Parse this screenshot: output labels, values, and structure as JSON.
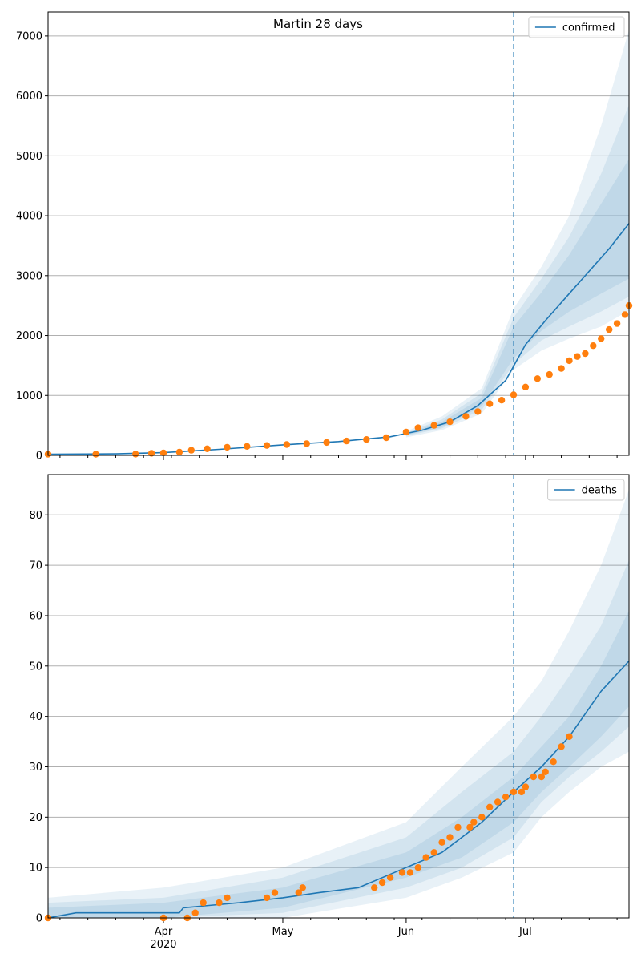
{
  "title": "Martin 28 days",
  "colors": {
    "model": "#1f77b4",
    "observed": "#ff7f0e",
    "grid": "#b0b0b0"
  },
  "chart_data": [
    {
      "type": "line",
      "name": "confirmed-panel",
      "legend": "confirmed",
      "legend_position": "top-right",
      "grid": "horizontal",
      "ylim": [
        0,
        7400
      ],
      "yticks": [
        0,
        1000,
        2000,
        3000,
        4000,
        5000,
        6000,
        7000
      ],
      "xlim": [
        "2020-03-03",
        "2020-07-27"
      ],
      "forecast_start": "2020-06-28",
      "series": [
        {
          "kind": "model-median",
          "points": [
            [
              "2020-03-03",
              20
            ],
            [
              "2020-03-20",
              25
            ],
            [
              "2020-04-01",
              45
            ],
            [
              "2020-04-15",
              100
            ],
            [
              "2020-05-01",
              175
            ],
            [
              "2020-05-15",
              230
            ],
            [
              "2020-05-28",
              310
            ],
            [
              "2020-06-05",
              420
            ],
            [
              "2020-06-12",
              560
            ],
            [
              "2020-06-19",
              830
            ],
            [
              "2020-06-26",
              1250
            ],
            [
              "2020-07-01",
              1850
            ],
            [
              "2020-07-06",
              2250
            ],
            [
              "2020-07-12",
              2700
            ],
            [
              "2020-07-18",
              3150
            ],
            [
              "2020-07-22",
              3450
            ],
            [
              "2020-07-27",
              3870
            ]
          ]
        },
        {
          "kind": "uncertainty-bands",
          "x": [
            "2020-06-01",
            "2020-06-10",
            "2020-06-20",
            "2020-06-28",
            "2020-07-05",
            "2020-07-12",
            "2020-07-20",
            "2020-07-27"
          ],
          "bands": [
            {
              "lower": [
                300,
                420,
                700,
                1430,
                1750,
                1950,
                2150,
                2420
              ],
              "upper": [
                400,
                650,
                1120,
                2450,
                3150,
                4000,
                5500,
                7100
              ]
            },
            {
              "lower": [
                325,
                450,
                760,
                1520,
                1920,
                2150,
                2400,
                2650
              ],
              "upper": [
                380,
                600,
                1040,
                2300,
                2950,
                3650,
                4700,
                5850
              ]
            },
            {
              "lower": [
                340,
                470,
                820,
                1620,
                2080,
                2400,
                2700,
                2950
              ],
              "upper": [
                365,
                560,
                960,
                2150,
                2720,
                3350,
                4200,
                4950
              ]
            }
          ]
        },
        {
          "kind": "observed",
          "name": "observed",
          "points": [
            [
              "2020-03-03",
              20
            ],
            [
              "2020-03-15",
              20
            ],
            [
              "2020-03-25",
              22
            ],
            [
              "2020-03-29",
              35
            ],
            [
              "2020-04-01",
              42
            ],
            [
              "2020-04-05",
              55
            ],
            [
              "2020-04-08",
              85
            ],
            [
              "2020-04-12",
              110
            ],
            [
              "2020-04-17",
              135
            ],
            [
              "2020-04-22",
              150
            ],
            [
              "2020-04-27",
              165
            ],
            [
              "2020-05-02",
              180
            ],
            [
              "2020-05-07",
              195
            ],
            [
              "2020-05-12",
              215
            ],
            [
              "2020-05-17",
              240
            ],
            [
              "2020-05-22",
              265
            ],
            [
              "2020-05-27",
              295
            ],
            [
              "2020-06-01",
              390
            ],
            [
              "2020-06-04",
              460
            ],
            [
              "2020-06-08",
              500
            ],
            [
              "2020-06-12",
              560
            ],
            [
              "2020-06-16",
              650
            ],
            [
              "2020-06-19",
              730
            ],
            [
              "2020-06-22",
              860
            ],
            [
              "2020-06-25",
              920
            ],
            [
              "2020-06-28",
              1010
            ],
            [
              "2020-07-01",
              1140
            ],
            [
              "2020-07-04",
              1280
            ],
            [
              "2020-07-07",
              1350
            ],
            [
              "2020-07-10",
              1450
            ],
            [
              "2020-07-12",
              1580
            ],
            [
              "2020-07-14",
              1650
            ],
            [
              "2020-07-16",
              1700
            ],
            [
              "2020-07-18",
              1830
            ],
            [
              "2020-07-20",
              1950
            ],
            [
              "2020-07-22",
              2100
            ],
            [
              "2020-07-24",
              2200
            ],
            [
              "2020-07-26",
              2350
            ],
            [
              "2020-07-27",
              2500
            ]
          ]
        }
      ]
    },
    {
      "type": "line",
      "name": "deaths-panel",
      "legend": "deaths",
      "legend_position": "top-right",
      "grid": "horizontal",
      "ylim": [
        0,
        88
      ],
      "yticks": [
        0,
        10,
        20,
        30,
        40,
        50,
        60,
        70,
        80
      ],
      "xlim": [
        "2020-03-03",
        "2020-07-27"
      ],
      "xticks": [
        {
          "date": "2020-04-01",
          "label": "Apr",
          "sublabel": "2020"
        },
        {
          "date": "2020-05-01",
          "label": "May"
        },
        {
          "date": "2020-06-01",
          "label": "Jun"
        },
        {
          "date": "2020-07-01",
          "label": "Jul"
        }
      ],
      "forecast_start": "2020-06-28",
      "series": [
        {
          "kind": "model-median",
          "points": [
            [
              "2020-03-03",
              0
            ],
            [
              "2020-03-10",
              1
            ],
            [
              "2020-04-05",
              1
            ],
            [
              "2020-04-06",
              2
            ],
            [
              "2020-04-20",
              3
            ],
            [
              "2020-05-01",
              4
            ],
            [
              "2020-05-10",
              5
            ],
            [
              "2020-05-20",
              6
            ],
            [
              "2020-06-01",
              10
            ],
            [
              "2020-06-10",
              13
            ],
            [
              "2020-06-20",
              19
            ],
            [
              "2020-06-28",
              25
            ],
            [
              "2020-07-05",
              30
            ],
            [
              "2020-07-12",
              36
            ],
            [
              "2020-07-20",
              45
            ],
            [
              "2020-07-27",
              51
            ]
          ]
        },
        {
          "kind": "uncertainty-bands",
          "x": [
            "2020-03-03",
            "2020-04-01",
            "2020-05-01",
            "2020-06-01",
            "2020-06-15",
            "2020-06-28",
            "2020-07-05",
            "2020-07-12",
            "2020-07-20",
            "2020-07-27"
          ],
          "bands": [
            {
              "lower": [
                0,
                0,
                0,
                4,
                8,
                13,
                20,
                25,
                30,
                33
              ],
              "upper": [
                4,
                6,
                10,
                19,
                30,
                40,
                47,
                57,
                70,
                85
              ]
            },
            {
              "lower": [
                0,
                0,
                1,
                6,
                10,
                16,
                23,
                28,
                33,
                38
              ],
              "upper": [
                3,
                4,
                8,
                16,
                25,
                33,
                40,
                48,
                58,
                71
              ]
            },
            {
              "lower": [
                0,
                0,
                2,
                8,
                12,
                19,
                25,
                30,
                36,
                42
              ],
              "upper": [
                2,
                3,
                6,
                13,
                20,
                28,
                34,
                40,
                50,
                61
              ]
            }
          ]
        },
        {
          "kind": "observed",
          "name": "observed",
          "points": [
            [
              "2020-03-03",
              0
            ],
            [
              "2020-04-01",
              0
            ],
            [
              "2020-04-07",
              0
            ],
            [
              "2020-04-09",
              1
            ],
            [
              "2020-04-11",
              3
            ],
            [
              "2020-04-15",
              3
            ],
            [
              "2020-04-17",
              4
            ],
            [
              "2020-04-27",
              4
            ],
            [
              "2020-04-29",
              5
            ],
            [
              "2020-05-05",
              5
            ],
            [
              "2020-05-06",
              6
            ],
            [
              "2020-05-24",
              6
            ],
            [
              "2020-05-26",
              7
            ],
            [
              "2020-05-28",
              8
            ],
            [
              "2020-05-31",
              9
            ],
            [
              "2020-06-02",
              9
            ],
            [
              "2020-06-04",
              10
            ],
            [
              "2020-06-06",
              12
            ],
            [
              "2020-06-08",
              13
            ],
            [
              "2020-06-10",
              15
            ],
            [
              "2020-06-12",
              16
            ],
            [
              "2020-06-14",
              18
            ],
            [
              "2020-06-17",
              18
            ],
            [
              "2020-06-18",
              19
            ],
            [
              "2020-06-20",
              20
            ],
            [
              "2020-06-22",
              22
            ],
            [
              "2020-06-24",
              23
            ],
            [
              "2020-06-26",
              24
            ],
            [
              "2020-06-28",
              25
            ],
            [
              "2020-06-30",
              25
            ],
            [
              "2020-07-01",
              26
            ],
            [
              "2020-07-03",
              28
            ],
            [
              "2020-07-05",
              28
            ],
            [
              "2020-07-06",
              29
            ],
            [
              "2020-07-08",
              31
            ],
            [
              "2020-07-10",
              34
            ],
            [
              "2020-07-12",
              36
            ]
          ]
        }
      ]
    }
  ]
}
